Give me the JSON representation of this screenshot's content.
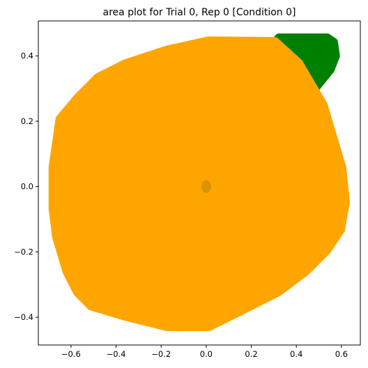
{
  "chart_data": {
    "type": "area",
    "title": "area plot for Trial 0, Rep 0 [Condition 0]",
    "xlim": [
      -0.745,
      0.684
    ],
    "ylim": [
      -0.485,
      0.507
    ],
    "xticks": [
      {
        "value": -0.6,
        "label": "−0.6"
      },
      {
        "value": -0.4,
        "label": "−0.4"
      },
      {
        "value": -0.2,
        "label": "−0.2"
      },
      {
        "value": 0,
        "label": "0.0"
      },
      0.2,
      0.4,
      0.6
    ],
    "yticks": [
      {
        "value": -0.4,
        "label": "−0.4"
      },
      {
        "value": -0.2,
        "label": "−0.2"
      },
      {
        "value": 0,
        "label": "0.0"
      },
      0.2,
      0.4
    ],
    "series": [
      {
        "color": "#008000",
        "x": [
          0.306,
          0.322,
          0.538,
          0.569,
          0.578,
          0.554,
          0.492,
          0.414
        ],
        "y": [
          0.447,
          0.458,
          0.458,
          0.443,
          0.4,
          0.357,
          0.304,
          0.379
        ]
      },
      {
        "color": "#ffa500",
        "x": [
          -0.173,
          0.012,
          0.306,
          0.414,
          0.523,
          0.569,
          0.606,
          0.622,
          0.6,
          0.538,
          0.445,
          0.322,
          0.167,
          0.012,
          -0.173,
          -0.359,
          -0.513,
          -0.575,
          -0.622,
          -0.668,
          -0.684,
          -0.684,
          -0.653,
          -0.575,
          -0.483,
          -0.359
        ],
        "y": [
          0.421,
          0.449,
          0.447,
          0.379,
          0.251,
          0.144,
          0.059,
          -0.048,
          -0.133,
          -0.197,
          -0.261,
          -0.325,
          -0.379,
          -0.432,
          -0.432,
          -0.4,
          -0.368,
          -0.325,
          -0.261,
          -0.155,
          -0.069,
          0.059,
          0.208,
          0.272,
          0.336,
          0.379
        ]
      },
      {
        "color": "#d99400",
        "marker": "ellipse",
        "x": [
          0
        ],
        "y": [
          0
        ]
      }
    ]
  }
}
